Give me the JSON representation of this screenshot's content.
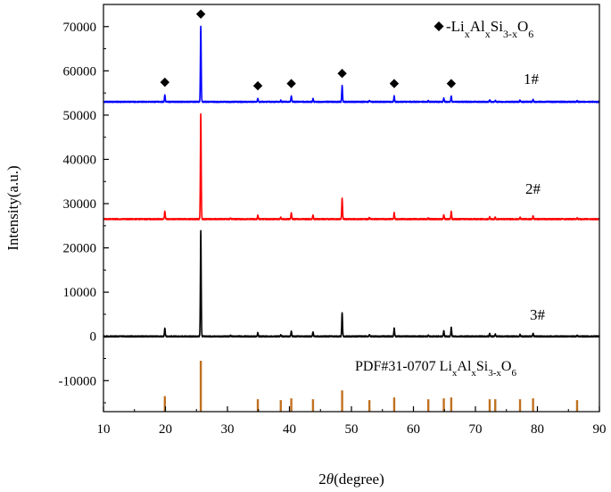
{
  "chart_data": {
    "type": "line",
    "xlabel": "2θ(degree)",
    "ylabel": "Intensity(a.u.)",
    "xlim": [
      10,
      90
    ],
    "ylim": [
      -17000,
      75000
    ],
    "xticks": [
      10,
      20,
      30,
      40,
      50,
      60,
      70,
      80,
      90
    ],
    "yticks": [
      -10000,
      0,
      10000,
      20000,
      30000,
      40000,
      50000,
      60000,
      70000
    ],
    "legend": {
      "marker": "◆",
      "text": "-LixAlxSi3-xO6",
      "position": "top-right"
    },
    "marker_peaks_1": [
      19.9,
      25.7,
      34.9,
      40.3,
      48.5,
      56.9,
      66.1
    ],
    "series": [
      {
        "name": "1#",
        "color": "#0000ff",
        "baseline": 53000,
        "peaks": [
          {
            "x": 19.9,
            "h": 1600
          },
          {
            "x": 25.7,
            "h": 17000
          },
          {
            "x": 34.9,
            "h": 800
          },
          {
            "x": 38.6,
            "h": 300
          },
          {
            "x": 40.3,
            "h": 1300
          },
          {
            "x": 43.8,
            "h": 700
          },
          {
            "x": 48.5,
            "h": 3600
          },
          {
            "x": 52.9,
            "h": 200
          },
          {
            "x": 56.9,
            "h": 1300
          },
          {
            "x": 62.4,
            "h": 200
          },
          {
            "x": 64.9,
            "h": 800
          },
          {
            "x": 66.1,
            "h": 1300
          },
          {
            "x": 72.3,
            "h": 400
          },
          {
            "x": 73.2,
            "h": 300
          },
          {
            "x": 77.2,
            "h": 300
          },
          {
            "x": 79.3,
            "h": 500
          },
          {
            "x": 86.4,
            "h": 200
          }
        ]
      },
      {
        "name": "2#",
        "color": "#ff0000",
        "baseline": 26500,
        "peaks": [
          {
            "x": 19.9,
            "h": 1800
          },
          {
            "x": 25.7,
            "h": 23800
          },
          {
            "x": 30.5,
            "h": 200
          },
          {
            "x": 34.9,
            "h": 900
          },
          {
            "x": 38.6,
            "h": 400
          },
          {
            "x": 40.3,
            "h": 1400
          },
          {
            "x": 43.8,
            "h": 900
          },
          {
            "x": 48.5,
            "h": 4700
          },
          {
            "x": 52.9,
            "h": 300
          },
          {
            "x": 56.9,
            "h": 1400
          },
          {
            "x": 62.4,
            "h": 200
          },
          {
            "x": 64.9,
            "h": 1000
          },
          {
            "x": 66.1,
            "h": 1700
          },
          {
            "x": 72.3,
            "h": 500
          },
          {
            "x": 73.2,
            "h": 400
          },
          {
            "x": 77.2,
            "h": 400
          },
          {
            "x": 79.3,
            "h": 700
          },
          {
            "x": 86.4,
            "h": 200
          }
        ]
      },
      {
        "name": "3#",
        "color": "#000000",
        "baseline": 0,
        "peaks": [
          {
            "x": 19.9,
            "h": 1900
          },
          {
            "x": 25.7,
            "h": 23800
          },
          {
            "x": 30.5,
            "h": 200
          },
          {
            "x": 34.9,
            "h": 800
          },
          {
            "x": 38.6,
            "h": 300
          },
          {
            "x": 40.3,
            "h": 1100
          },
          {
            "x": 43.8,
            "h": 1000
          },
          {
            "x": 48.5,
            "h": 5400
          },
          {
            "x": 52.9,
            "h": 300
          },
          {
            "x": 56.9,
            "h": 1900
          },
          {
            "x": 62.4,
            "h": 200
          },
          {
            "x": 64.9,
            "h": 1300
          },
          {
            "x": 66.1,
            "h": 2000
          },
          {
            "x": 72.3,
            "h": 600
          },
          {
            "x": 73.2,
            "h": 500
          },
          {
            "x": 77.2,
            "h": 400
          },
          {
            "x": 79.3,
            "h": 700
          },
          {
            "x": 86.4,
            "h": 200
          }
        ]
      }
    ],
    "reference": {
      "label": "PDF#31-0707 LixAlxSi3-xO6",
      "color": "#c07020",
      "base": -17000,
      "lines": [
        {
          "x": 19.9,
          "top": -13500
        },
        {
          "x": 25.7,
          "top": -5500
        },
        {
          "x": 34.9,
          "top": -14200
        },
        {
          "x": 38.6,
          "top": -14400
        },
        {
          "x": 40.3,
          "top": -14000
        },
        {
          "x": 43.8,
          "top": -14200
        },
        {
          "x": 48.5,
          "top": -12200
        },
        {
          "x": 52.9,
          "top": -14400
        },
        {
          "x": 56.9,
          "top": -13800
        },
        {
          "x": 62.4,
          "top": -14200
        },
        {
          "x": 64.9,
          "top": -14000
        },
        {
          "x": 66.1,
          "top": -13800
        },
        {
          "x": 72.3,
          "top": -14200
        },
        {
          "x": 73.2,
          "top": -14200
        },
        {
          "x": 77.2,
          "top": -14200
        },
        {
          "x": 79.3,
          "top": -14000
        },
        {
          "x": 86.4,
          "top": -14400
        }
      ]
    }
  }
}
